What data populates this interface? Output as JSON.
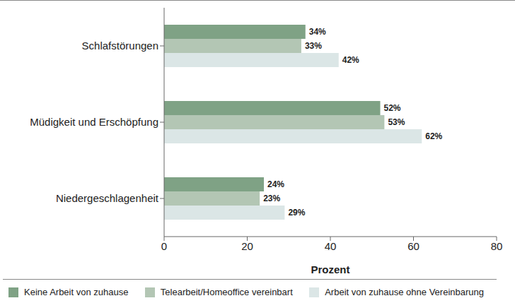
{
  "chart_data": {
    "type": "bar",
    "orientation": "horizontal",
    "categories": [
      "Schlafstörungen",
      "Müdigkeit und Erschöpfung",
      "Niedergeschlagenheit"
    ],
    "series": [
      {
        "name": "Keine Arbeit von zuhause",
        "color": "#7fa285",
        "values": [
          34,
          52,
          24
        ],
        "value_labels": [
          "34%",
          "52%",
          "24%"
        ]
      },
      {
        "name": "Telearbeit/Homeoffice vereinbart",
        "color": "#b3c6b4",
        "values": [
          33,
          53,
          23
        ],
        "value_labels": [
          "33%",
          "53%",
          "23%"
        ]
      },
      {
        "name": "Arbeit von zuhause ohne Vereinbarung",
        "color": "#dbe6e6",
        "values": [
          42,
          62,
          29
        ],
        "value_labels": [
          "42%",
          "62%",
          "29%"
        ]
      }
    ],
    "x_label": "Prozent",
    "xlim": [
      0,
      80
    ],
    "xticks": [
      0,
      20,
      40,
      60,
      80
    ],
    "grid": false,
    "legend": "bottom",
    "data_labels": true
  }
}
